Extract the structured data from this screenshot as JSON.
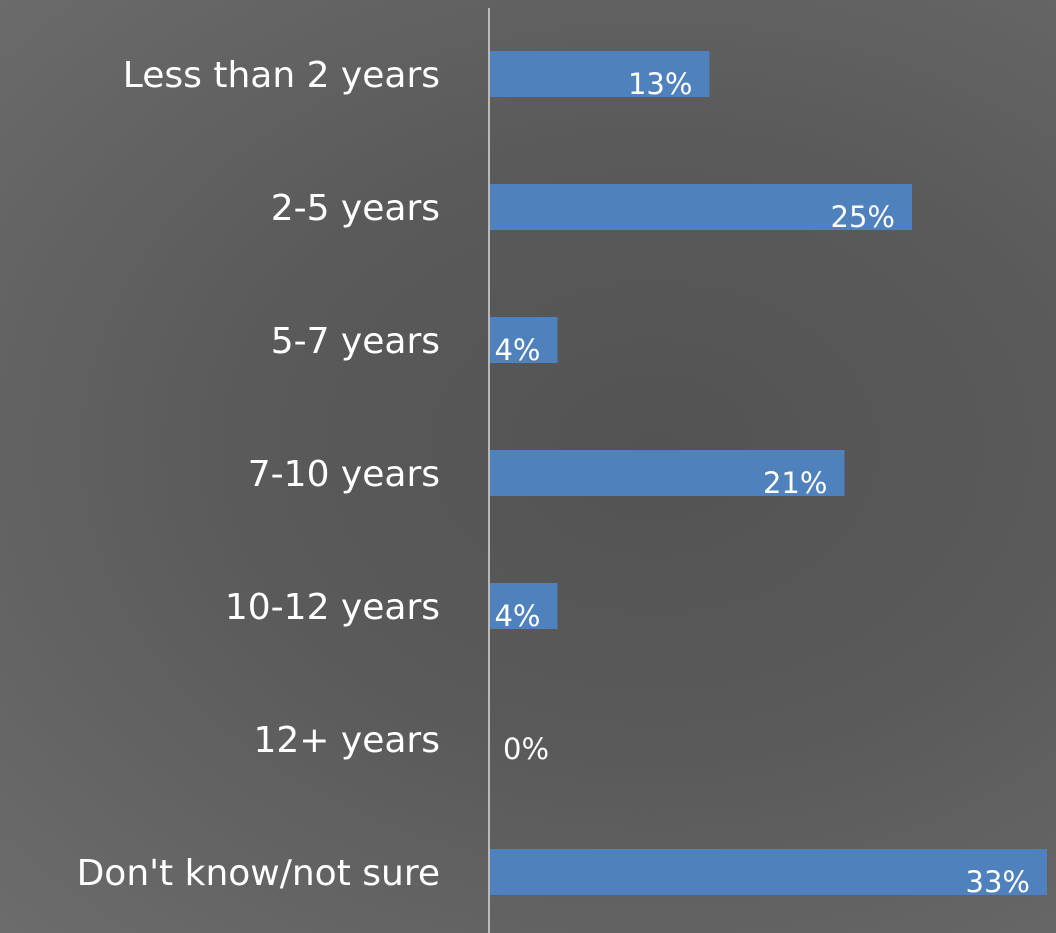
{
  "chart_data": {
    "type": "bar",
    "orientation": "horizontal",
    "title": "",
    "xlabel": "",
    "ylabel": "",
    "categories": [
      "Less than 2 years",
      "2-5 years",
      "5-7 years",
      "7-10 years",
      "10-12 years",
      "12+ years",
      "Don't know/not sure"
    ],
    "values": [
      13,
      25,
      4,
      21,
      4,
      0,
      33
    ],
    "data_labels": [
      "13%",
      "25%",
      "4%",
      "21%",
      "4%",
      "0%",
      "33%"
    ],
    "xlim": [
      0,
      33
    ],
    "unit": "%",
    "grid": false,
    "legend": "none",
    "colors": {
      "bar": "#4f81bd",
      "axis": "#d9d9d9",
      "text": "#ffffff"
    }
  }
}
